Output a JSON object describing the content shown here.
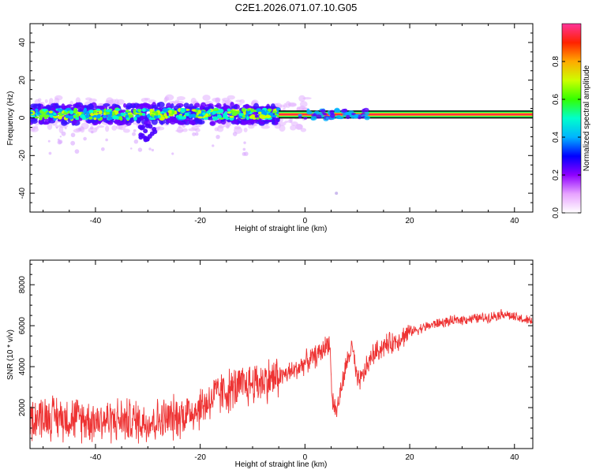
{
  "title": "C2E1.2026.071.07.10.G05",
  "chart_data": [
    {
      "type": "heatmap",
      "xlabel": "Height of straight line (km)",
      "ylabel": "Frequency (Hz)",
      "xlim": [
        -52.5,
        43.5
      ],
      "ylim": [
        -50,
        50
      ],
      "xticks": [
        -40,
        -20,
        0,
        20,
        40
      ],
      "yticks": [
        -40,
        -20,
        0,
        20,
        40
      ],
      "colorbar": {
        "label": "Normalized spectral amplitude",
        "ticks": [
          0.0,
          0.2,
          0.4,
          0.6,
          0.8
        ],
        "tick_labels": [
          "0.0",
          "0.2",
          "0.4",
          "0.6",
          "0.8"
        ],
        "range": [
          0,
          1
        ]
      },
      "stable_band": {
        "x_range": [
          -5,
          43.5
        ],
        "freq_center": 1.8,
        "freq_halfwidth": 1.5
      },
      "noisy_band": {
        "x_range": [
          -52.5,
          -5
        ],
        "freq_center": 2,
        "freq_halfwidth": 5
      }
    },
    {
      "type": "line",
      "xlabel": "Height of straight line (km)",
      "ylabel": "SNR (10 * v/v)",
      "xlim": [
        -52.5,
        43.5
      ],
      "ylim": [
        0,
        9200
      ],
      "xticks": [
        -40,
        -20,
        0,
        20,
        40
      ],
      "yticks": [
        2000,
        4000,
        6000,
        8000
      ],
      "series": [
        {
          "name": "SNR",
          "color": "#ee3333",
          "x": [
            -52.5,
            -50,
            -45,
            -40,
            -35,
            -30,
            -25,
            -20,
            -17,
            -15,
            -12,
            -10,
            -8,
            -5,
            -2,
            0,
            2,
            3,
            4,
            4.7,
            5.2,
            6,
            7,
            8,
            9,
            10,
            11,
            12,
            13,
            15,
            17,
            20,
            25,
            30,
            35,
            38,
            40,
            43.5
          ],
          "values": [
            1500,
            1600,
            1500,
            1400,
            1400,
            1300,
            1500,
            2000,
            2600,
            2800,
            3000,
            3200,
            3300,
            3500,
            3800,
            4200,
            4500,
            4700,
            5000,
            5300,
            2400,
            1800,
            3000,
            4200,
            5000,
            3200,
            3500,
            4100,
            4600,
            5000,
            5200,
            5700,
            6100,
            6300,
            6400,
            6600,
            6400,
            6200
          ]
        }
      ]
    }
  ]
}
